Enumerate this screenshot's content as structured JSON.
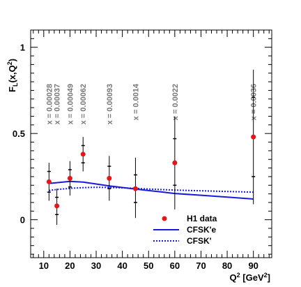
{
  "chart_data": {
    "type": "scatter",
    "ylabel_main": "F",
    "ylabel_sub": "L",
    "ylabel_args": "(x,Q",
    "ylabel_sup": "2",
    "ylabel_close": ")",
    "xlabel_main": "Q",
    "xlabel_sup": "2",
    "xlabel_unit_open": " [GeV",
    "xlabel_unit_sup": "2",
    "xlabel_unit_close": "]",
    "xlim": [
      5,
      97
    ],
    "ylim": [
      -0.22,
      1.1
    ],
    "x_ticks": [
      10,
      20,
      30,
      40,
      50,
      60,
      70,
      80,
      90
    ],
    "y_ticks": [
      {
        "value": 0,
        "label": "0"
      },
      {
        "value": 0.5,
        "label": "0.5"
      },
      {
        "value": 1,
        "label": "1"
      }
    ],
    "x_annotations": [
      {
        "q2": 12,
        "label": "x = 0.00028"
      },
      {
        "q2": 15,
        "label": "x = 0.00037"
      },
      {
        "q2": 20,
        "label": "x = 0.00049"
      },
      {
        "q2": 25,
        "label": "x = 0.00062"
      },
      {
        "q2": 35,
        "label": "x = 0.00093"
      },
      {
        "q2": 45,
        "label": "x = 0.0014"
      },
      {
        "q2": 60,
        "label": "x = 0.0022"
      },
      {
        "q2": 90,
        "label": "x = 0.0036"
      }
    ],
    "series": [
      {
        "name": "H1 data",
        "color": "#e8141a",
        "points": [
          {
            "x": 12,
            "y": 0.22,
            "inner": [
              0.16,
              0.28
            ],
            "outer": [
              0.11,
              0.33
            ]
          },
          {
            "x": 15,
            "y": 0.08,
            "inner": [
              0.03,
              0.13
            ],
            "outer": [
              -0.03,
              0.18
            ]
          },
          {
            "x": 20,
            "y": 0.24,
            "inner": [
              0.19,
              0.29
            ],
            "outer": [
              0.14,
              0.34
            ]
          },
          {
            "x": 25,
            "y": 0.38,
            "inner": [
              0.33,
              0.43
            ],
            "outer": [
              0.28,
              0.48
            ]
          },
          {
            "x": 35,
            "y": 0.24,
            "inner": [
              0.18,
              0.31
            ],
            "outer": [
              0.11,
              0.37
            ]
          },
          {
            "x": 45,
            "y": 0.18,
            "inner": [
              0.1,
              0.26
            ],
            "outer": [
              0.01,
              0.36
            ]
          },
          {
            "x": 60,
            "y": 0.33,
            "inner": [
              0.2,
              0.47
            ],
            "outer": [
              0.06,
              0.6
            ]
          },
          {
            "x": 90,
            "y": 0.48,
            "inner": [
              0.25,
              0.71
            ],
            "outer": [
              0.09,
              0.87
            ]
          }
        ]
      },
      {
        "name": "CFSK'e",
        "color": "#1a1adc",
        "style": "solid",
        "x": [
          12,
          15,
          20,
          25,
          30,
          35,
          40,
          45,
          50,
          55,
          60,
          70,
          80,
          90
        ],
        "y": [
          0.21,
          0.215,
          0.222,
          0.218,
          0.207,
          0.196,
          0.187,
          0.178,
          0.169,
          0.161,
          0.152,
          0.142,
          0.131,
          0.12
        ]
      },
      {
        "name": "CFSK'",
        "color": "#1a1adc",
        "style": "dotted",
        "x": [
          12,
          15,
          20,
          25,
          30,
          35,
          40,
          45,
          50,
          60,
          70,
          80,
          90
        ],
        "y": [
          0.17,
          0.175,
          0.182,
          0.186,
          0.188,
          0.187,
          0.185,
          0.182,
          0.178,
          0.172,
          0.168,
          0.164,
          0.16
        ]
      }
    ],
    "legend": {
      "placement": "bottom-center",
      "entries": [
        "H1 data",
        "CFSK'e",
        "CFSK'"
      ]
    },
    "grid": false
  }
}
